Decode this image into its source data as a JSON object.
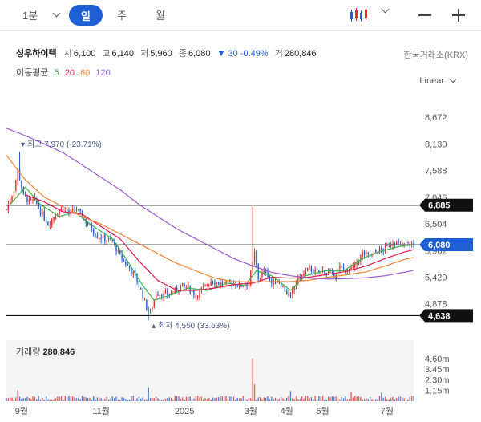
{
  "toolbar": {
    "interval": "1분",
    "tabs": [
      "일",
      "주",
      "월"
    ],
    "active_tab": "일"
  },
  "stock": {
    "name": "성우하이텍",
    "open_label": "시",
    "open": "6,100",
    "high_label": "고",
    "high": "6,140",
    "low_label": "저",
    "low": "5,960",
    "close_label": "종",
    "close": "6,080",
    "change": "▼ 30 -0.49%",
    "volume_label": "거",
    "volume": "280,846",
    "exchange": "한국거래소(KRX)"
  },
  "ma_legend": {
    "label": "이동평균",
    "items": [
      {
        "text": "5",
        "color": "#3cb44b"
      },
      {
        "text": "20",
        "color": "#e6194b"
      },
      {
        "text": "60",
        "color": "#f58231"
      },
      {
        "text": "120",
        "color": "#9b59d0"
      }
    ]
  },
  "scale_mode": "Linear",
  "volume_panel": {
    "label": "거래량",
    "value": "280,846"
  },
  "colors": {
    "up": "#e0312b",
    "down": "#1e5fd6",
    "ma5": "#3cb44b",
    "ma20": "#e6194b",
    "ma60": "#f58231",
    "ma120": "#9b59d0",
    "accent": "#1e5fd6"
  },
  "chart_data": {
    "type": "candlestick",
    "x_ticks": [
      "9월",
      "11월",
      "2025",
      "3월",
      "4월",
      "5월",
      "7월"
    ],
    "x_tick_index": [
      8,
      50,
      94,
      129,
      148,
      167,
      201
    ],
    "y_ticks": [
      8672,
      8130,
      7588,
      7046,
      6504,
      5962,
      5420,
      4878
    ],
    "ylim": [
      4400,
      9100
    ],
    "current_price": {
      "label": "6,080",
      "value": 6080
    },
    "price_lines": [
      {
        "label": "6,885",
        "value": 6885
      },
      {
        "label": "4,638",
        "value": 4638
      }
    ],
    "annotations": [
      {
        "text": "최고 7,970 (-23.71%)",
        "value": 7970,
        "index": 6,
        "kind": "high"
      },
      {
        "text": "최저 4,550 (33.63%)",
        "value": 4550,
        "index": 75,
        "kind": "low"
      }
    ],
    "volume_ticks": [
      "4.60m",
      "3.45m",
      "2.30m",
      "1.15m"
    ],
    "volume_tick_values": [
      4.6,
      3.45,
      2.3,
      1.15
    ],
    "volume_max": 5.2,
    "close_path": [
      [
        0,
        6800
      ],
      [
        4,
        7200
      ],
      [
        6,
        7600
      ],
      [
        9,
        7100
      ],
      [
        12,
        6950
      ],
      [
        15,
        7000
      ],
      [
        18,
        6750
      ],
      [
        22,
        6500
      ],
      [
        26,
        6700
      ],
      [
        30,
        6850
      ],
      [
        33,
        6700
      ],
      [
        37,
        6800
      ],
      [
        40,
        6650
      ],
      [
        44,
        6450
      ],
      [
        48,
        6250
      ],
      [
        52,
        6200
      ],
      [
        56,
        6150
      ],
      [
        60,
        5850
      ],
      [
        64,
        5650
      ],
      [
        68,
        5450
      ],
      [
        71,
        5150
      ],
      [
        74,
        4800
      ],
      [
        76,
        4700
      ],
      [
        79,
        5100
      ],
      [
        83,
        5050
      ],
      [
        88,
        5100
      ],
      [
        92,
        5250
      ],
      [
        96,
        5200
      ],
      [
        100,
        5050
      ],
      [
        104,
        5200
      ],
      [
        108,
        5350
      ],
      [
        112,
        5300
      ],
      [
        116,
        5280
      ],
      [
        120,
        5300
      ],
      [
        124,
        5250
      ],
      [
        128,
        5300
      ],
      [
        131,
        5900
      ],
      [
        133,
        5400
      ],
      [
        137,
        5550
      ],
      [
        140,
        5300
      ],
      [
        144,
        5350
      ],
      [
        147,
        5150
      ],
      [
        150,
        5000
      ],
      [
        153,
        5350
      ],
      [
        156,
        5450
      ],
      [
        160,
        5600
      ],
      [
        164,
        5500
      ],
      [
        168,
        5550
      ],
      [
        172,
        5450
      ],
      [
        176,
        5600
      ],
      [
        180,
        5550
      ],
      [
        184,
        5650
      ],
      [
        188,
        5900
      ],
      [
        192,
        5850
      ],
      [
        196,
        5950
      ],
      [
        200,
        6000
      ],
      [
        204,
        6150
      ],
      [
        208,
        6050
      ],
      [
        212,
        6100
      ],
      [
        215,
        6080
      ]
    ],
    "spikes": [
      [
        7,
        7970,
        6800
      ],
      [
        130,
        6850,
        5500
      ],
      [
        75,
        4550,
        5000
      ]
    ],
    "ma5_path": [
      [
        2,
        6900
      ],
      [
        10,
        7250
      ],
      [
        18,
        6900
      ],
      [
        28,
        6650
      ],
      [
        36,
        6750
      ],
      [
        46,
        6450
      ],
      [
        56,
        6200
      ],
      [
        64,
        5750
      ],
      [
        72,
        5250
      ],
      [
        78,
        4950
      ],
      [
        86,
        5050
      ],
      [
        96,
        5200
      ],
      [
        106,
        5150
      ],
      [
        116,
        5300
      ],
      [
        126,
        5250
      ],
      [
        132,
        5550
      ],
      [
        140,
        5450
      ],
      [
        150,
        5150
      ],
      [
        158,
        5450
      ],
      [
        168,
        5550
      ],
      [
        178,
        5550
      ],
      [
        188,
        5800
      ],
      [
        198,
        5950
      ],
      [
        208,
        6050
      ],
      [
        215,
        6080
      ]
    ],
    "ma20_path": [
      [
        10,
        7100
      ],
      [
        20,
        6950
      ],
      [
        30,
        6750
      ],
      [
        40,
        6700
      ],
      [
        50,
        6450
      ],
      [
        60,
        6200
      ],
      [
        70,
        5750
      ],
      [
        80,
        5350
      ],
      [
        90,
        5150
      ],
      [
        100,
        5150
      ],
      [
        110,
        5200
      ],
      [
        120,
        5270
      ],
      [
        130,
        5300
      ],
      [
        140,
        5420
      ],
      [
        150,
        5400
      ],
      [
        160,
        5420
      ],
      [
        170,
        5480
      ],
      [
        180,
        5540
      ],
      [
        190,
        5650
      ],
      [
        200,
        5800
      ],
      [
        210,
        5930
      ],
      [
        215,
        5980
      ]
    ],
    "ma60_path": [
      [
        0,
        7900
      ],
      [
        10,
        7400
      ],
      [
        20,
        7050
      ],
      [
        30,
        6850
      ],
      [
        40,
        6650
      ],
      [
        50,
        6500
      ],
      [
        60,
        6300
      ],
      [
        70,
        6100
      ],
      [
        80,
        5900
      ],
      [
        90,
        5700
      ],
      [
        100,
        5550
      ],
      [
        110,
        5400
      ],
      [
        120,
        5330
      ],
      [
        130,
        5320
      ],
      [
        140,
        5330
      ],
      [
        150,
        5330
      ],
      [
        160,
        5360
      ],
      [
        170,
        5420
      ],
      [
        180,
        5470
      ],
      [
        190,
        5530
      ],
      [
        200,
        5650
      ],
      [
        210,
        5780
      ],
      [
        215,
        5820
      ]
    ],
    "ma120_path": [
      [
        0,
        8450
      ],
      [
        10,
        8300
      ],
      [
        20,
        8130
      ],
      [
        30,
        7950
      ],
      [
        40,
        7700
      ],
      [
        50,
        7450
      ],
      [
        60,
        7200
      ],
      [
        70,
        6900
      ],
      [
        80,
        6650
      ],
      [
        90,
        6400
      ],
      [
        100,
        6200
      ],
      [
        110,
        6000
      ],
      [
        120,
        5800
      ],
      [
        130,
        5650
      ],
      [
        140,
        5520
      ],
      [
        150,
        5450
      ],
      [
        160,
        5400
      ],
      [
        170,
        5380
      ],
      [
        180,
        5390
      ],
      [
        190,
        5410
      ],
      [
        200,
        5450
      ],
      [
        210,
        5520
      ],
      [
        215,
        5560
      ]
    ]
  }
}
